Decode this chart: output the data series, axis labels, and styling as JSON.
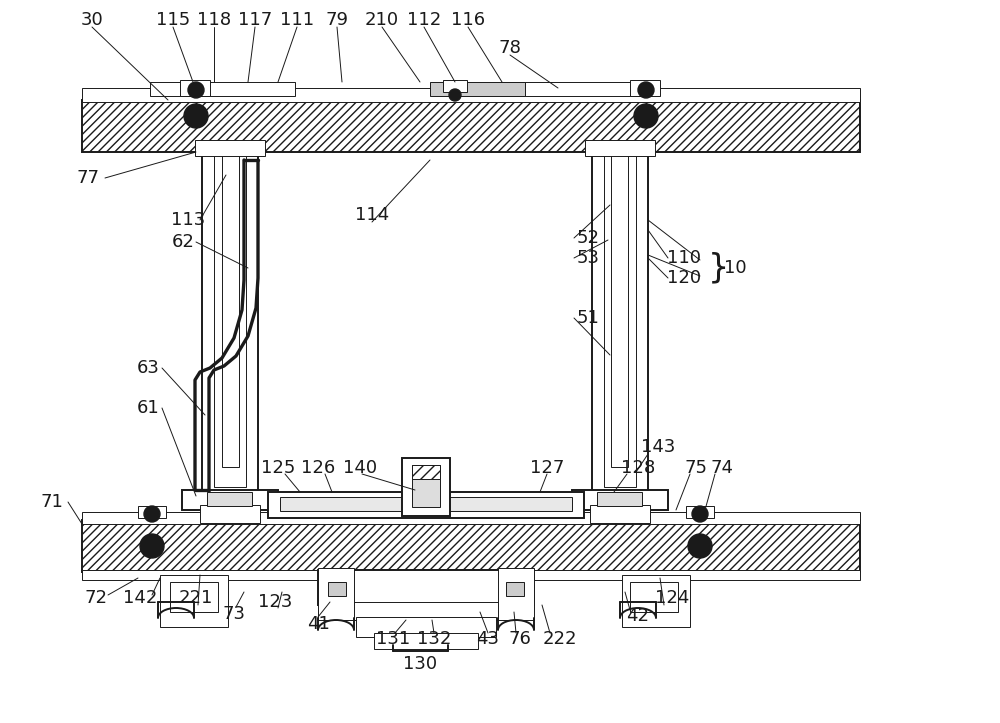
{
  "bg_color": "#ffffff",
  "line_color": "#1a1a1a",
  "font_size": 13,
  "figsize": [
    10.0,
    7.23
  ]
}
